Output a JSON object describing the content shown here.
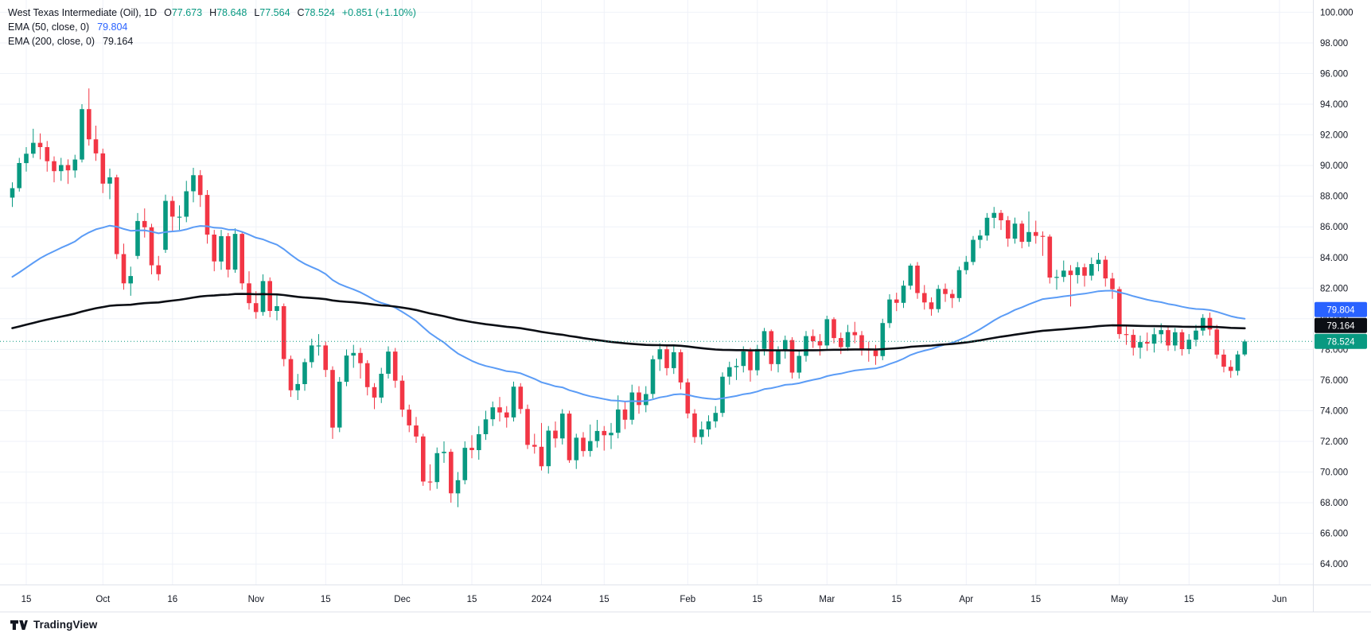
{
  "legend": {
    "title": "West Texas Intermediate (Oil), 1D",
    "ohlc": {
      "o_label": "O",
      "o": "77.673",
      "h_label": "H",
      "h": "78.648",
      "l_label": "L",
      "l": "77.564",
      "c_label": "C",
      "c": "78.524",
      "change": "+0.851 (+1.10%)"
    },
    "ema50": {
      "label": "EMA (50, close, 0)",
      "value": "79.804"
    },
    "ema200": {
      "label": "EMA (200, close, 0)",
      "value": "79.164"
    }
  },
  "colors": {
    "up": "#089981",
    "down": "#F23645",
    "ema50_line": "#5B9CF6",
    "ema50_badge": "#2962FF",
    "ema200_line": "#0B0E14",
    "grid": "#EFF2F8",
    "axis_text": "#131722",
    "separator": "#E0E3EB"
  },
  "price_axis_badges": [
    {
      "text": "79.804",
      "bg": "#2962FF"
    },
    {
      "text": "79.164",
      "bg": "#0B0E14"
    },
    {
      "text": "78.524",
      "bg": "#089981"
    }
  ],
  "footer": {
    "brand": "TradingView"
  },
  "chart_data": {
    "type": "candlestick",
    "symbol": "West Texas Intermediate (Oil)",
    "interval": "1D",
    "last": {
      "open": 77.673,
      "high": 78.648,
      "low": 77.564,
      "close": 78.524,
      "change": 0.851,
      "change_pct": 1.1
    },
    "last_price_line": 78.524,
    "y_axis": {
      "price_top": 100.8,
      "price_bottom": 62.66,
      "ticks": [
        100,
        98,
        96,
        94,
        92,
        90,
        88,
        86,
        84,
        82,
        80,
        78,
        76,
        74,
        72,
        70,
        68,
        66,
        64
      ]
    },
    "x_axis": {
      "labels": [
        {
          "text": "15",
          "index": 2
        },
        {
          "text": "Oct",
          "index": 13
        },
        {
          "text": "16",
          "index": 23
        },
        {
          "text": "Nov",
          "index": 35
        },
        {
          "text": "15",
          "index": 45
        },
        {
          "text": "Dec",
          "index": 56
        },
        {
          "text": "15",
          "index": 66
        },
        {
          "text": "2024",
          "index": 76
        },
        {
          "text": "15",
          "index": 85
        },
        {
          "text": "Feb",
          "index": 97
        },
        {
          "text": "15",
          "index": 107
        },
        {
          "text": "Mar",
          "index": 117
        },
        {
          "text": "15",
          "index": 127
        },
        {
          "text": "Apr",
          "index": 137
        },
        {
          "text": "15",
          "index": 147
        },
        {
          "text": "May",
          "index": 159
        },
        {
          "text": "15",
          "index": 169
        },
        {
          "text": "Jun",
          "index": 182
        }
      ]
    },
    "overlays": [
      {
        "name": "EMA (50, close, 0)",
        "period": 50,
        "seed": 82.5,
        "color": "#5B9CF6",
        "width": 2,
        "last": 79.804
      },
      {
        "name": "EMA (200, close, 0)",
        "period": 200,
        "seed": 79.3,
        "color": "#0B0E14",
        "width": 2.6,
        "last": 79.164
      }
    ],
    "candles": [
      [
        87.9,
        88.9,
        87.3,
        88.52
      ],
      [
        88.52,
        90.5,
        88.3,
        90.16
      ],
      [
        90.16,
        91.2,
        89.6,
        90.77
      ],
      [
        90.77,
        92.4,
        90.5,
        91.48
      ],
      [
        91.48,
        92.1,
        90.4,
        91.2
      ],
      [
        91.2,
        91.6,
        89.6,
        90.28
      ],
      [
        90.28,
        90.6,
        88.9,
        89.63
      ],
      [
        89.63,
        90.5,
        89.0,
        90.03
      ],
      [
        90.03,
        90.4,
        88.8,
        89.68
      ],
      [
        89.68,
        90.7,
        89.2,
        90.39
      ],
      [
        90.39,
        94.0,
        90.2,
        93.68
      ],
      [
        93.68,
        95.03,
        91.3,
        91.71
      ],
      [
        91.71,
        92.6,
        90.3,
        90.79
      ],
      [
        90.79,
        91.1,
        88.2,
        88.82
      ],
      [
        88.82,
        89.8,
        87.8,
        89.23
      ],
      [
        89.23,
        89.4,
        83.9,
        84.22
      ],
      [
        84.22,
        84.9,
        81.9,
        82.31
      ],
      [
        82.31,
        83.4,
        81.5,
        82.79
      ],
      [
        84.1,
        86.9,
        83.9,
        86.38
      ],
      [
        86.38,
        87.2,
        85.3,
        85.97
      ],
      [
        85.97,
        86.2,
        82.9,
        83.49
      ],
      [
        83.49,
        84.1,
        82.5,
        82.91
      ],
      [
        84.5,
        88.1,
        84.3,
        87.69
      ],
      [
        87.69,
        88.0,
        85.7,
        86.66
      ],
      [
        86.66,
        87.4,
        85.8,
        86.66
      ],
      [
        86.66,
        89.0,
        86.3,
        88.32
      ],
      [
        88.32,
        89.85,
        87.6,
        89.37
      ],
      [
        89.37,
        89.7,
        87.3,
        88.08
      ],
      [
        88.08,
        88.4,
        84.9,
        85.49
      ],
      [
        85.49,
        85.8,
        83.1,
        83.74
      ],
      [
        83.74,
        85.8,
        83.2,
        85.39
      ],
      [
        85.39,
        85.6,
        82.7,
        83.21
      ],
      [
        83.21,
        85.9,
        83.0,
        85.54
      ],
      [
        85.54,
        85.7,
        81.9,
        82.31
      ],
      [
        82.31,
        83.1,
        80.6,
        81.02
      ],
      [
        81.02,
        81.8,
        80.0,
        80.44
      ],
      [
        80.44,
        82.9,
        80.2,
        82.46
      ],
      [
        82.46,
        82.7,
        80.1,
        80.51
      ],
      [
        80.51,
        81.6,
        79.9,
        80.82
      ],
      [
        80.82,
        81.0,
        76.9,
        77.37
      ],
      [
        77.37,
        77.6,
        74.9,
        75.33
      ],
      [
        75.33,
        76.4,
        74.7,
        75.74
      ],
      [
        75.74,
        77.4,
        75.3,
        77.17
      ],
      [
        77.17,
        78.7,
        76.8,
        78.26
      ],
      [
        78.26,
        79.0,
        77.6,
        78.26
      ],
      [
        78.26,
        78.5,
        76.2,
        76.66
      ],
      [
        76.66,
        76.9,
        72.16,
        72.9
      ],
      [
        72.9,
        76.2,
        72.6,
        75.89
      ],
      [
        75.89,
        78.0,
        75.6,
        77.6
      ],
      [
        77.6,
        78.3,
        76.8,
        77.77
      ],
      [
        77.77,
        78.1,
        76.1,
        77.1
      ],
      [
        77.1,
        77.3,
        75.0,
        75.54
      ],
      [
        75.54,
        75.8,
        74.1,
        74.86
      ],
      [
        74.86,
        76.8,
        74.5,
        76.41
      ],
      [
        76.41,
        78.2,
        76.1,
        77.86
      ],
      [
        77.86,
        78.1,
        75.5,
        75.96
      ],
      [
        75.96,
        76.3,
        73.6,
        74.07
      ],
      [
        74.07,
        74.4,
        72.6,
        73.04
      ],
      [
        73.04,
        73.6,
        71.9,
        72.32
      ],
      [
        72.32,
        72.5,
        69.1,
        69.38
      ],
      [
        69.38,
        70.5,
        68.8,
        69.34
      ],
      [
        69.34,
        71.6,
        68.9,
        71.23
      ],
      [
        71.23,
        72.0,
        70.6,
        71.32
      ],
      [
        71.32,
        71.5,
        68.0,
        68.61
      ],
      [
        68.61,
        70.0,
        67.71,
        69.47
      ],
      [
        69.47,
        72.0,
        69.2,
        71.58
      ],
      [
        71.58,
        72.4,
        70.9,
        71.43
      ],
      [
        71.43,
        73.0,
        70.8,
        72.47
      ],
      [
        72.47,
        74.0,
        72.1,
        73.44
      ],
      [
        73.44,
        74.6,
        73.0,
        74.22
      ],
      [
        74.22,
        74.9,
        73.3,
        73.89
      ],
      [
        73.89,
        74.3,
        72.9,
        73.56
      ],
      [
        73.56,
        75.9,
        73.3,
        75.57
      ],
      [
        75.57,
        75.8,
        73.8,
        74.11
      ],
      [
        74.11,
        74.4,
        71.5,
        71.77
      ],
      [
        71.77,
        72.5,
        71.2,
        71.65
      ],
      [
        71.65,
        73.2,
        70.1,
        70.38
      ],
      [
        70.38,
        73.0,
        69.9,
        72.7
      ],
      [
        72.7,
        73.3,
        71.6,
        72.19
      ],
      [
        72.19,
        74.1,
        71.8,
        73.81
      ],
      [
        73.81,
        74.0,
        70.6,
        70.77
      ],
      [
        70.77,
        72.5,
        70.2,
        72.24
      ],
      [
        72.24,
        72.6,
        71.0,
        71.37
      ],
      [
        71.37,
        73.1,
        71.0,
        72.02
      ],
      [
        72.02,
        73.4,
        71.6,
        72.68
      ],
      [
        72.68,
        73.0,
        71.4,
        72.4
      ],
      [
        72.4,
        73.2,
        71.5,
        72.56
      ],
      [
        72.56,
        75.0,
        72.2,
        74.08
      ],
      [
        74.08,
        74.6,
        72.8,
        73.41
      ],
      [
        73.41,
        75.7,
        73.1,
        75.19
      ],
      [
        75.19,
        75.6,
        73.8,
        74.37
      ],
      [
        74.37,
        75.6,
        73.9,
        75.09
      ],
      [
        75.09,
        77.6,
        74.8,
        77.36
      ],
      [
        77.36,
        78.4,
        76.6,
        78.01
      ],
      [
        78.01,
        78.3,
        76.3,
        76.78
      ],
      [
        76.78,
        78.2,
        76.4,
        77.82
      ],
      [
        77.82,
        78.0,
        75.4,
        75.85
      ],
      [
        75.85,
        76.1,
        73.5,
        73.82
      ],
      [
        73.82,
        74.1,
        71.9,
        72.28
      ],
      [
        72.28,
        73.3,
        71.8,
        72.78
      ],
      [
        72.78,
        73.7,
        72.3,
        73.31
      ],
      [
        73.31,
        74.3,
        72.9,
        73.86
      ],
      [
        73.86,
        76.5,
        73.6,
        76.22
      ],
      [
        76.22,
        77.2,
        75.7,
        76.84
      ],
      [
        76.84,
        77.4,
        76.0,
        76.92
      ],
      [
        76.92,
        78.2,
        76.5,
        77.87
      ],
      [
        77.87,
        78.1,
        75.9,
        76.64
      ],
      [
        76.64,
        78.3,
        76.3,
        78.03
      ],
      [
        78.03,
        79.4,
        77.6,
        79.19
      ],
      [
        79.19,
        79.3,
        76.6,
        77.04
      ],
      [
        77.04,
        78.2,
        76.5,
        77.91
      ],
      [
        77.91,
        78.9,
        77.4,
        78.61
      ],
      [
        78.61,
        78.8,
        76.1,
        76.49
      ],
      [
        76.49,
        77.9,
        76.1,
        77.58
      ],
      [
        77.58,
        79.2,
        77.2,
        78.87
      ],
      [
        78.87,
        79.3,
        78.1,
        78.54
      ],
      [
        78.54,
        79.0,
        77.6,
        78.26
      ],
      [
        78.26,
        80.2,
        78.0,
        79.97
      ],
      [
        79.97,
        80.1,
        78.4,
        78.74
      ],
      [
        78.74,
        79.1,
        77.7,
        78.15
      ],
      [
        78.15,
        79.6,
        77.9,
        79.13
      ],
      [
        79.13,
        79.8,
        78.4,
        78.93
      ],
      [
        78.93,
        79.2,
        77.6,
        78.01
      ],
      [
        78.01,
        78.5,
        77.2,
        77.93
      ],
      [
        77.93,
        78.3,
        77.0,
        77.56
      ],
      [
        77.56,
        80.0,
        77.3,
        79.72
      ],
      [
        79.72,
        81.6,
        79.4,
        81.26
      ],
      [
        81.26,
        81.7,
        80.5,
        81.04
      ],
      [
        81.04,
        82.5,
        80.7,
        82.16
      ],
      [
        82.16,
        83.6,
        81.9,
        83.47
      ],
      [
        83.47,
        83.7,
        81.3,
        81.68
      ],
      [
        81.68,
        82.2,
        80.6,
        81.07
      ],
      [
        81.07,
        81.4,
        80.2,
        80.63
      ],
      [
        80.63,
        82.2,
        80.4,
        81.95
      ],
      [
        81.95,
        82.3,
        81.1,
        81.62
      ],
      [
        81.62,
        81.9,
        80.7,
        81.35
      ],
      [
        81.35,
        83.4,
        81.1,
        83.17
      ],
      [
        83.17,
        84.1,
        82.9,
        83.71
      ],
      [
        83.71,
        85.4,
        83.5,
        85.15
      ],
      [
        85.15,
        85.8,
        84.6,
        85.43
      ],
      [
        85.43,
        86.9,
        85.1,
        86.59
      ],
      [
        86.59,
        87.3,
        85.9,
        86.91
      ],
      [
        86.91,
        87.1,
        85.8,
        86.43
      ],
      [
        86.43,
        86.7,
        84.7,
        85.23
      ],
      [
        85.23,
        86.6,
        84.9,
        86.21
      ],
      [
        86.21,
        86.4,
        84.6,
        85.02
      ],
      [
        85.02,
        87.0,
        84.7,
        85.66
      ],
      [
        85.66,
        86.4,
        84.9,
        85.41
      ],
      [
        85.41,
        85.7,
        84.1,
        85.36
      ],
      [
        85.36,
        85.5,
        82.3,
        82.69
      ],
      [
        82.69,
        83.2,
        81.9,
        82.73
      ],
      [
        82.73,
        83.8,
        82.4,
        83.14
      ],
      [
        83.14,
        83.5,
        80.8,
        82.85
      ],
      [
        82.85,
        83.7,
        82.3,
        83.36
      ],
      [
        83.36,
        83.6,
        82.1,
        82.81
      ],
      [
        82.81,
        84.0,
        82.5,
        83.57
      ],
      [
        83.57,
        84.3,
        83.1,
        83.85
      ],
      [
        83.85,
        84.1,
        82.1,
        82.63
      ],
      [
        82.63,
        83.0,
        81.3,
        81.93
      ],
      [
        81.93,
        82.1,
        78.7,
        79.0
      ],
      [
        79.0,
        79.6,
        78.3,
        78.95
      ],
      [
        78.95,
        79.3,
        77.6,
        78.11
      ],
      [
        78.11,
        78.9,
        77.4,
        78.48
      ],
      [
        78.48,
        79.1,
        77.9,
        78.38
      ],
      [
        78.38,
        79.4,
        77.8,
        78.99
      ],
      [
        78.99,
        79.7,
        78.4,
        79.26
      ],
      [
        79.26,
        79.5,
        77.9,
        78.26
      ],
      [
        78.26,
        79.4,
        77.9,
        79.12
      ],
      [
        79.12,
        79.3,
        77.6,
        78.02
      ],
      [
        78.02,
        79.0,
        77.7,
        78.63
      ],
      [
        78.63,
        79.6,
        78.2,
        79.23
      ],
      [
        79.23,
        80.3,
        78.9,
        80.06
      ],
      [
        80.06,
        80.4,
        78.9,
        79.3
      ],
      [
        79.3,
        79.6,
        77.4,
        77.66
      ],
      [
        77.66,
        78.0,
        76.5,
        76.87
      ],
      [
        76.87,
        77.3,
        76.15,
        76.6
      ],
      [
        76.6,
        77.9,
        76.3,
        77.67
      ],
      [
        77.673,
        78.648,
        77.564,
        78.524
      ]
    ]
  }
}
